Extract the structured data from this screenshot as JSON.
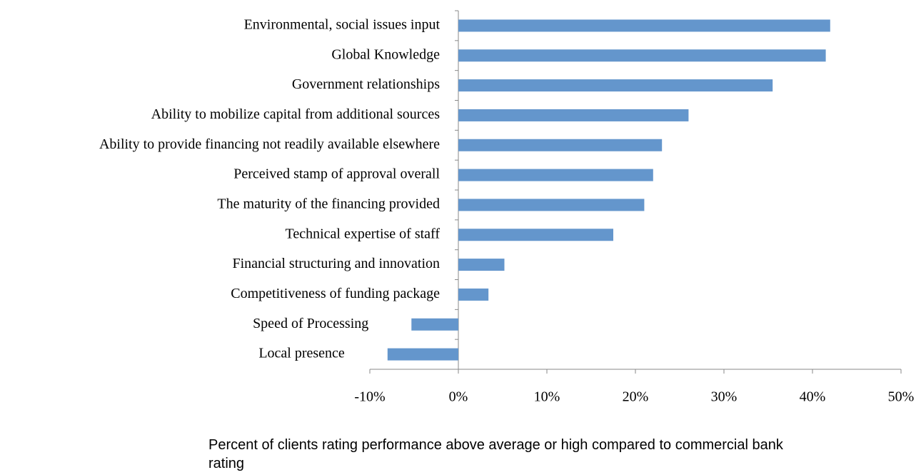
{
  "chart_data": {
    "type": "hbar",
    "categories": [
      "Environmental, social issues input",
      "Global Knowledge",
      "Government relationships",
      "Ability to mobilize capital from additional sources",
      "Ability to provide financing not readily available elsewhere",
      "Perceived stamp of approval overall",
      "The maturity of the financing provided",
      "Technical expertise of  staff",
      "Financial structuring and innovation",
      "Competitiveness of funding package",
      "Speed of Processing",
      "Local presence"
    ],
    "values": [
      42,
      41.5,
      35.5,
      26,
      23,
      22,
      21,
      17.5,
      5.2,
      3.4,
      -5.3,
      -8
    ],
    "color": "#6496cc",
    "xlim": [
      -10,
      50
    ],
    "xticks": [
      {
        "value": -10,
        "label": "-10%"
      },
      {
        "value": 0,
        "label": "0%"
      },
      {
        "value": 10,
        "label": "10%"
      },
      {
        "value": 20,
        "label": "20%"
      },
      {
        "value": 30,
        "label": "30%"
      },
      {
        "value": 40,
        "label": "40%"
      },
      {
        "value": 50,
        "label": "50%"
      }
    ],
    "x_label": "Percent of clients rating performance above average or high compared to commercial bank rating"
  }
}
